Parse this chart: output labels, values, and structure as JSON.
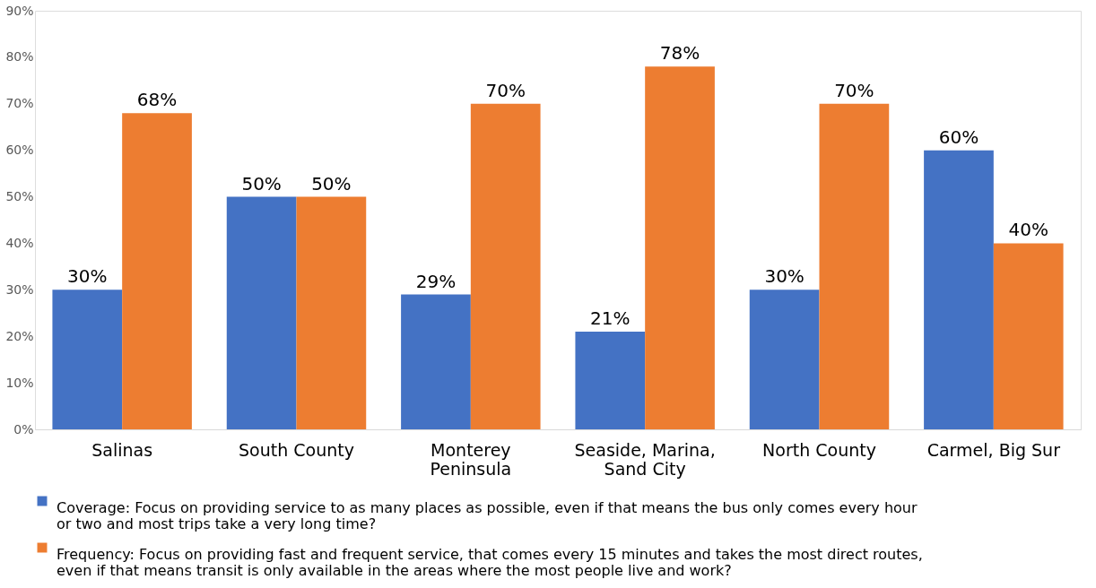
{
  "chart_data": {
    "type": "bar",
    "categories": [
      "Salinas",
      "South County",
      "Monterey Peninsula",
      "Seaside, Marina, Sand City",
      "North County",
      "Carmel, Big Sur"
    ],
    "series": [
      {
        "name": "Coverage: Focus on providing service to as many places as possible, even if that means the bus only comes every hour or two and most trips take a very long time?",
        "color": "#4472c4",
        "values": [
          30,
          50,
          29,
          21,
          30,
          60
        ],
        "value_labels": [
          "30%",
          "50%",
          "29%",
          "21%",
          "30%",
          "60%"
        ]
      },
      {
        "name": "Frequency: Focus on providing fast and frequent service, that comes every 15 minutes and takes the most direct routes, even if that means transit is only available in the areas where the most people live and work?",
        "color": "#ed7d31",
        "values": [
          68,
          50,
          70,
          78,
          70,
          40
        ],
        "value_labels": [
          "68%",
          "50%",
          "70%",
          "78%",
          "70%",
          "40%"
        ]
      }
    ],
    "ylim": [
      0,
      90
    ],
    "yticks": [
      {
        "value": 0,
        "label": "0%"
      },
      {
        "value": 10,
        "label": "10%"
      },
      {
        "value": 20,
        "label": "20%"
      },
      {
        "value": 30,
        "label": "30%"
      },
      {
        "value": 40,
        "label": "40%"
      },
      {
        "value": 50,
        "label": "50%"
      },
      {
        "value": 60,
        "label": "60%"
      },
      {
        "value": 70,
        "label": "70%"
      },
      {
        "value": 80,
        "label": "80%"
      },
      {
        "value": 90,
        "label": "90%"
      }
    ],
    "grid": false,
    "legend": "bottom"
  }
}
